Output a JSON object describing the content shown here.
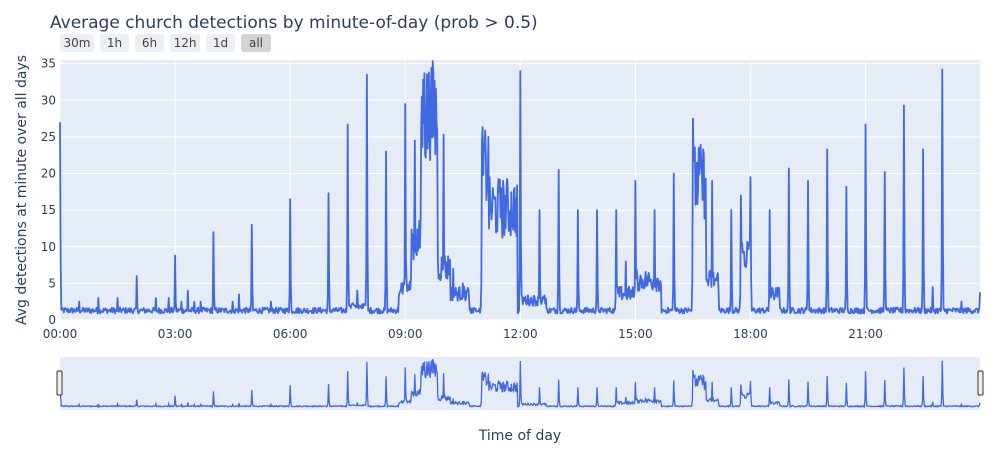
{
  "title": "Average church detections by minute-of-day (prob > 0.5)",
  "range_buttons": [
    {
      "label": "30m",
      "active": false
    },
    {
      "label": "1h",
      "active": false
    },
    {
      "label": "6h",
      "active": false
    },
    {
      "label": "12h",
      "active": false
    },
    {
      "label": "1d",
      "active": false
    },
    {
      "label": "all",
      "active": true
    }
  ],
  "colors": {
    "line": "#4169e1",
    "plot_bg": "#e5ecf6",
    "grid": "#ffffff",
    "text": "#2a3f5f"
  },
  "chart_data": {
    "type": "line",
    "title": "Average church detections by minute-of-day (prob > 0.5)",
    "xlabel": "Time of day",
    "ylabel": "Avg detections at minute over all days",
    "x_unit": "minute of day (00:00 = 0)",
    "xlim": [
      "00:00",
      "23:59"
    ],
    "ylim": [
      0,
      35.5
    ],
    "x_ticks": [
      "00:00",
      "03:00",
      "06:00",
      "09:00",
      "12:00",
      "15:00",
      "18:00",
      "21:00"
    ],
    "y_ticks": [
      0,
      5,
      10,
      15,
      20,
      25,
      30,
      35
    ],
    "grid": true,
    "range_slider": true,
    "baseline": 1.3,
    "spikes": [
      {
        "x": "00:00",
        "y": 27
      },
      {
        "x": "00:30",
        "y": 2.5
      },
      {
        "x": "01:00",
        "y": 3
      },
      {
        "x": "01:30",
        "y": 3
      },
      {
        "x": "02:00",
        "y": 6
      },
      {
        "x": "02:30",
        "y": 3
      },
      {
        "x": "02:50",
        "y": 3
      },
      {
        "x": "03:00",
        "y": 8.8
      },
      {
        "x": "03:10",
        "y": 2.5
      },
      {
        "x": "03:20",
        "y": 4
      },
      {
        "x": "03:30",
        "y": 2.5
      },
      {
        "x": "03:40",
        "y": 2.5
      },
      {
        "x": "04:00",
        "y": 12
      },
      {
        "x": "04:30",
        "y": 2.5
      },
      {
        "x": "04:40",
        "y": 3.5
      },
      {
        "x": "05:00",
        "y": 13
      },
      {
        "x": "05:30",
        "y": 2.5
      },
      {
        "x": "06:00",
        "y": 16.5
      },
      {
        "x": "07:00",
        "y": 17.3
      },
      {
        "x": "07:30",
        "y": 26.7
      },
      {
        "x": "07:45",
        "y": 4
      },
      {
        "x": "08:00",
        "y": 33.5
      },
      {
        "x": "08:30",
        "y": 23
      },
      {
        "x": "09:00",
        "y": 29.5
      },
      {
        "x": "09:15",
        "y": 24.5
      },
      {
        "x": "09:30",
        "y": 33.7
      },
      {
        "x": "09:40",
        "y": 31
      },
      {
        "x": "10:00",
        "y": 25.3
      },
      {
        "x": "10:15",
        "y": 7
      },
      {
        "x": "10:30",
        "y": 5
      },
      {
        "x": "11:00",
        "y": 24.3
      },
      {
        "x": "11:30",
        "y": 18
      },
      {
        "x": "12:00",
        "y": 34
      },
      {
        "x": "12:30",
        "y": 15
      },
      {
        "x": "13:00",
        "y": 20.5
      },
      {
        "x": "13:30",
        "y": 15
      },
      {
        "x": "14:00",
        "y": 15
      },
      {
        "x": "14:30",
        "y": 15
      },
      {
        "x": "14:45",
        "y": 8
      },
      {
        "x": "15:00",
        "y": 19
      },
      {
        "x": "15:30",
        "y": 15
      },
      {
        "x": "16:00",
        "y": 20
      },
      {
        "x": "16:30",
        "y": 27.5
      },
      {
        "x": "17:00",
        "y": 19
      },
      {
        "x": "17:30",
        "y": 15
      },
      {
        "x": "17:45",
        "y": 17
      },
      {
        "x": "18:00",
        "y": 19.5
      },
      {
        "x": "18:30",
        "y": 15
      },
      {
        "x": "19:00",
        "y": 20.7
      },
      {
        "x": "19:30",
        "y": 19
      },
      {
        "x": "20:00",
        "y": 23.3
      },
      {
        "x": "20:30",
        "y": 18.2
      },
      {
        "x": "21:00",
        "y": 26.7
      },
      {
        "x": "21:30",
        "y": 20.2
      },
      {
        "x": "22:00",
        "y": 29.3
      },
      {
        "x": "22:30",
        "y": 23.3
      },
      {
        "x": "22:45",
        "y": 4.5
      },
      {
        "x": "23:00",
        "y": 34.2
      },
      {
        "x": "23:30",
        "y": 2.5
      },
      {
        "x": "23:59",
        "y": 3.8
      }
    ],
    "plateaus": [
      {
        "from": "07:30",
        "to": "08:00",
        "y": 2
      },
      {
        "from": "08:50",
        "to": "09:10",
        "y": 5
      },
      {
        "from": "09:10",
        "to": "09:25",
        "y": 12
      },
      {
        "from": "09:25",
        "to": "09:50",
        "y": 31
      },
      {
        "from": "09:50",
        "to": "10:10",
        "y": 8
      },
      {
        "from": "10:10",
        "to": "10:40",
        "y": 4
      },
      {
        "from": "11:00",
        "to": "11:10",
        "y": 23
      },
      {
        "from": "11:10",
        "to": "11:55",
        "y": 17
      },
      {
        "from": "12:00",
        "to": "12:40",
        "y": 3
      },
      {
        "from": "14:30",
        "to": "15:30",
        "y": 4
      },
      {
        "from": "15:00",
        "to": "15:40",
        "y": 6
      },
      {
        "from": "16:30",
        "to": "16:50",
        "y": 21
      },
      {
        "from": "16:50",
        "to": "17:10",
        "y": 6
      },
      {
        "from": "17:45",
        "to": "18:00",
        "y": 10
      },
      {
        "from": "18:30",
        "to": "18:45",
        "y": 4
      }
    ]
  }
}
